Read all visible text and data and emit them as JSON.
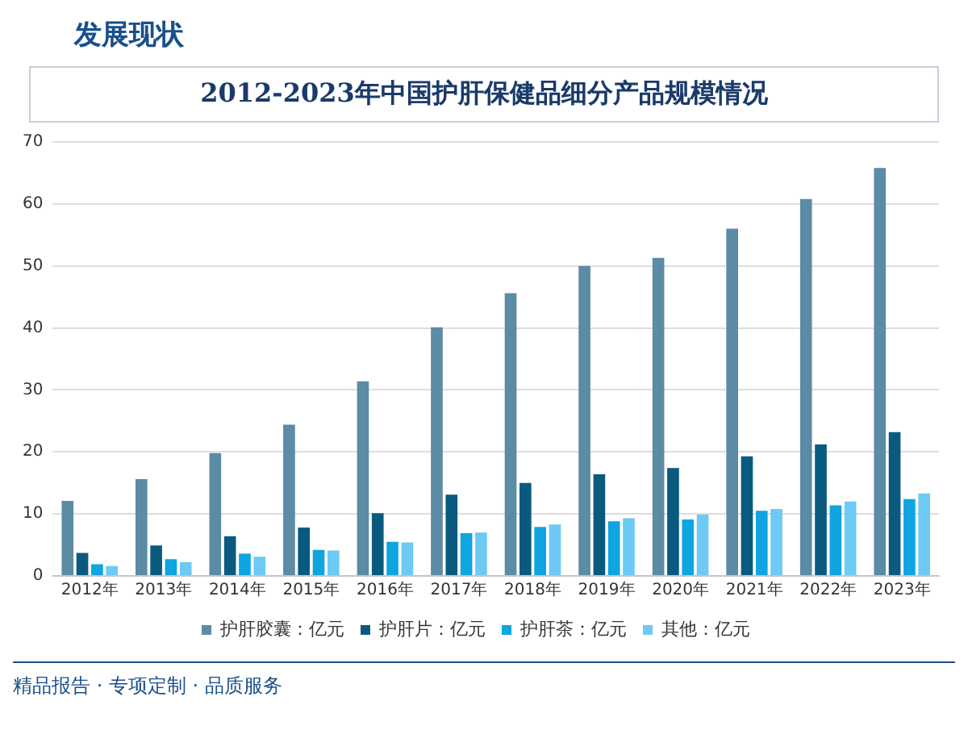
{
  "chart_data": {
    "type": "bar",
    "title": "2012-2023年中国护肝保健品细分产品规模情况",
    "annotations": [
      "发展现状",
      "精品报告 · 专项定制 · 品质服务"
    ],
    "categories": [
      "2012年",
      "2013年",
      "2014年",
      "2015年",
      "2016年",
      "2017年",
      "2018年",
      "2019年",
      "2020年",
      "2021年",
      "2022年",
      "2023年"
    ],
    "series": [
      {
        "name": "护肝胶囊：亿元",
        "color": "#5b8ba5",
        "values": [
          12.1,
          15.6,
          19.8,
          24.4,
          31.4,
          40.1,
          45.6,
          50,
          51.3,
          56,
          60.8,
          65.8
        ]
      },
      {
        "name": "护肝片：亿元",
        "color": "#0a5a80",
        "values": [
          3.7,
          4.9,
          6.4,
          7.8,
          10.1,
          13.1,
          15,
          16.4,
          17.4,
          19.3,
          21.2,
          23.2
        ]
      },
      {
        "name": "护肝茶：亿元",
        "color": "#0ea5e0",
        "values": [
          1.9,
          2.7,
          3.6,
          4.2,
          5.5,
          6.9,
          7.9,
          8.8,
          9.1,
          10.5,
          11.4,
          12.4
        ]
      },
      {
        "name": "其他：亿元",
        "color": "#6ccaf5",
        "values": [
          1.6,
          2.2,
          3.1,
          4.1,
          5.4,
          7.0,
          8.3,
          9.3,
          9.9,
          10.8,
          12.0,
          13.3
        ]
      }
    ],
    "ylim": [
      0,
      70
    ],
    "yticks": [
      0,
      10,
      20,
      30,
      40,
      50,
      60,
      70
    ],
    "grid": "y",
    "legend": "bottom"
  }
}
